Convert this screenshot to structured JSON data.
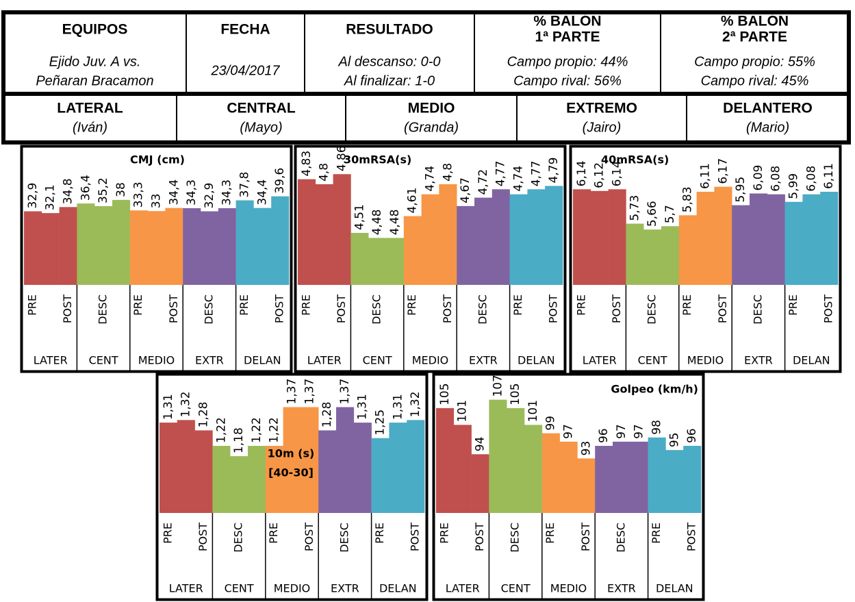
{
  "header": {
    "columns": [
      {
        "title": [
          "EQUIPOS"
        ],
        "lines": [
          "Ejido Juv. A vs.",
          "Peñaran Bracamon"
        ]
      },
      {
        "title": [
          "FECHA"
        ],
        "lines": [
          "23/04/2017"
        ]
      },
      {
        "title": [
          "RESULTADO"
        ],
        "lines": [
          "Al descanso: 0-0",
          "Al finalizar: 1-0"
        ]
      },
      {
        "title": [
          "% BALÓN",
          "1ª PARTE"
        ],
        "lines": [
          "Campo propio: 44%",
          "Campo rival: 56%"
        ]
      },
      {
        "title": [
          "% BALÓN",
          "2ª PARTE"
        ],
        "lines": [
          "Campo propio: 55%",
          "Campo rival: 45%"
        ]
      }
    ],
    "positions": [
      {
        "title": "LATERAL",
        "name": "(Iván)"
      },
      {
        "title": "CENTRAL",
        "name": "(Mayo)"
      },
      {
        "title": "MEDIO",
        "name": "(Granda)"
      },
      {
        "title": "EXTREMO",
        "name": "(Jairo)"
      },
      {
        "title": "DELANTERO",
        "name": "(Mario)"
      }
    ]
  },
  "chart_data": [
    {
      "type": "bar",
      "title": "CMJ (cm)",
      "categories": [
        "PRE",
        null,
        "POST",
        null,
        "DESC",
        null,
        "PRE",
        null,
        "POST",
        null,
        "DESC",
        null,
        "PRE",
        null,
        "POST"
      ],
      "groups": [
        "LATER",
        "CENT",
        "MEDIO",
        "EXTR",
        "DELAN"
      ],
      "group_colors": [
        "#c0504d",
        "#9bbb59",
        "#f79646",
        "#8064a2",
        "#4bacc6"
      ],
      "values": [
        32.9,
        32.1,
        34.8,
        36.4,
        35.2,
        38,
        33.3,
        33,
        34.4,
        34.3,
        32.9,
        34.3,
        37.8,
        34.4,
        39.6
      ],
      "value_labels": [
        "32,9",
        "32,1",
        "34,8",
        "36,4",
        "35,2",
        "38",
        "33,3",
        "33",
        "34,4",
        "34,3",
        "32,9",
        "34,3",
        "37,8",
        "34,4",
        "39,6"
      ],
      "ylim": [
        0,
        60
      ]
    },
    {
      "type": "bar",
      "title": "30mRSA(s)",
      "categories": [
        "PRE",
        null,
        "POST",
        null,
        "DESC",
        null,
        "PRE",
        null,
        "POST",
        null,
        "DESC",
        null,
        "PRE",
        null,
        "POST"
      ],
      "groups": [
        "LATER",
        "CENT",
        "MEDIO",
        "EXTR",
        "DELAN"
      ],
      "group_colors": [
        "#c0504d",
        "#9bbb59",
        "#f79646",
        "#8064a2",
        "#4bacc6"
      ],
      "values": [
        4.83,
        4.8,
        4.86,
        4.51,
        4.48,
        4.48,
        4.61,
        4.74,
        4.8,
        4.67,
        4.72,
        4.77,
        4.74,
        4.77,
        4.79
      ],
      "value_labels": [
        "4,83",
        "4,8",
        "4,86",
        "4,51",
        "4,48",
        "4,48",
        "4,61",
        "4,74",
        "4,8",
        "4,67",
        "4,72",
        "4,77",
        "4,74",
        "4,77",
        "4,79"
      ],
      "ylim": [
        4.2,
        5.0
      ]
    },
    {
      "type": "bar",
      "title": "40mRSA(s)",
      "categories": [
        "PRE",
        null,
        "POST",
        null,
        "DESC",
        null,
        "PRE",
        null,
        "POST",
        null,
        "DESC",
        null,
        "PRE",
        null,
        "POST"
      ],
      "groups": [
        "LATER",
        "CENT",
        "MEDIO",
        "EXTR",
        "DELAN"
      ],
      "group_colors": [
        "#c0504d",
        "#9bbb59",
        "#f79646",
        "#8064a2",
        "#4bacc6"
      ],
      "values": [
        6.14,
        6.12,
        6.14,
        5.73,
        5.66,
        5.7,
        5.83,
        6.11,
        6.17,
        5.95,
        6.09,
        6.08,
        5.99,
        6.08,
        6.11
      ],
      "value_labels": [
        "6,14",
        "6,12",
        "6,14",
        "5,73",
        "5,66",
        "5,7",
        "5,83",
        "6,11",
        "6,17",
        "5,95",
        "6,09",
        "6,08",
        "5,99",
        "6,08",
        "6,11"
      ],
      "ylim": [
        5.0,
        6.6
      ]
    },
    {
      "type": "bar",
      "title": "10m (s)",
      "subtitle": "[40-30]",
      "categories": [
        "PRE",
        null,
        "POST",
        null,
        "DESC",
        null,
        "PRE",
        null,
        "POST",
        null,
        "DESC",
        null,
        "PRE",
        null,
        "POST"
      ],
      "groups": [
        "LATER",
        "CENT",
        "MEDIO",
        "EXTR",
        "DELAN"
      ],
      "group_colors": [
        "#c0504d",
        "#9bbb59",
        "#f79646",
        "#8064a2",
        "#4bacc6"
      ],
      "values": [
        1.31,
        1.32,
        1.28,
        1.22,
        1.18,
        1.22,
        1.22,
        1.37,
        1.37,
        1.28,
        1.37,
        1.31,
        1.25,
        1.31,
        1.32
      ],
      "value_labels": [
        "1,31",
        "1,32",
        "1,28",
        "1,22",
        "1,18",
        "1,22",
        "1,22",
        "1,37",
        "1,37",
        "1,28",
        "1,37",
        "1,31",
        "1,25",
        "1,31",
        "1,32"
      ],
      "ylim": [
        0.96,
        1.48
      ]
    },
    {
      "type": "bar",
      "title": "Golpeo (km/h)",
      "categories": [
        "PRE",
        null,
        "POST",
        null,
        "DESC",
        null,
        "PRE",
        null,
        "POST",
        null,
        "DESC",
        null,
        "PRE",
        null,
        "POST"
      ],
      "groups": [
        "LATER",
        "CENT",
        "MEDIO",
        "EXTR",
        "DELAN"
      ],
      "group_colors": [
        "#c0504d",
        "#9bbb59",
        "#f79646",
        "#8064a2",
        "#4bacc6"
      ],
      "values": [
        105,
        101,
        94,
        107,
        105,
        101,
        99,
        97,
        93,
        96,
        97,
        97,
        98,
        95,
        96
      ],
      "ylim": [
        80,
        112
      ]
    }
  ]
}
